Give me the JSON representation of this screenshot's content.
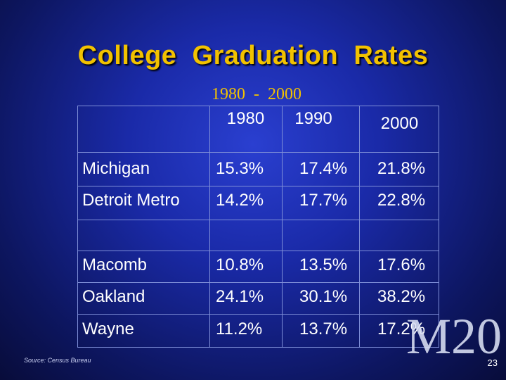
{
  "slide": {
    "title": "College  Graduation  Rates",
    "subtitle": "1980  -  2000",
    "source": "Source:  Census Bureau",
    "watermark": "M20",
    "page_number": "23"
  },
  "table": {
    "columns": [
      "1980",
      "1990",
      "2000"
    ],
    "rows": [
      {
        "label": "Michigan",
        "values": [
          "15.3%",
          "17.4%",
          "21.8%"
        ]
      },
      {
        "label": "Detroit Metro",
        "values": [
          "14.2%",
          "17.7%",
          "22.8%"
        ]
      },
      {
        "label": "Macomb",
        "values": [
          "10.8%",
          "13.5%",
          "17.6%"
        ]
      },
      {
        "label": "Oakland",
        "values": [
          "24.1%",
          "30.1%",
          "38.2%"
        ]
      },
      {
        "label": "Wayne",
        "values": [
          "11.2%",
          "13.7%",
          "17.2%"
        ]
      }
    ]
  },
  "colors": {
    "title": "#f2c200",
    "subtitle": "#f2c200",
    "background": "#1a2aa8",
    "text": "#ffffff"
  }
}
